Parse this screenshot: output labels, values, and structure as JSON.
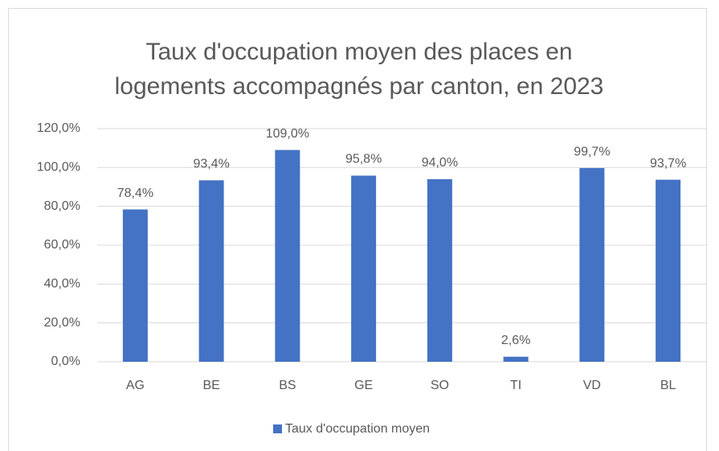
{
  "chart_data": {
    "type": "bar",
    "title": [
      "Taux d'occupation moyen des places en",
      "logements accompagnés par canton, en 2023"
    ],
    "categories": [
      "AG",
      "BE",
      "BS",
      "GE",
      "SO",
      "TI",
      "VD",
      "BL"
    ],
    "series": [
      {
        "name": "Taux d'occupation moyen",
        "color": "#4472c4",
        "values": [
          78.4,
          93.4,
          109.0,
          95.8,
          94.0,
          2.6,
          99.7,
          93.7
        ],
        "value_labels": [
          "78,4%",
          "93,4%",
          "109,0%",
          "95,8%",
          "94,0%",
          "2,6%",
          "99,7%",
          "93,7%"
        ]
      }
    ],
    "ylim": [
      0,
      120
    ],
    "yticks": [
      {
        "value": 0,
        "label": "0,0%"
      },
      {
        "value": 20,
        "label": "20,0%"
      },
      {
        "value": 40,
        "label": "40,0%"
      },
      {
        "value": 60,
        "label": "60,0%"
      },
      {
        "value": 80,
        "label": "80,0%"
      },
      {
        "value": 100,
        "label": "100,0%"
      },
      {
        "value": 120,
        "label": "120,0%"
      }
    ],
    "grid": true,
    "legend": "bottom"
  }
}
